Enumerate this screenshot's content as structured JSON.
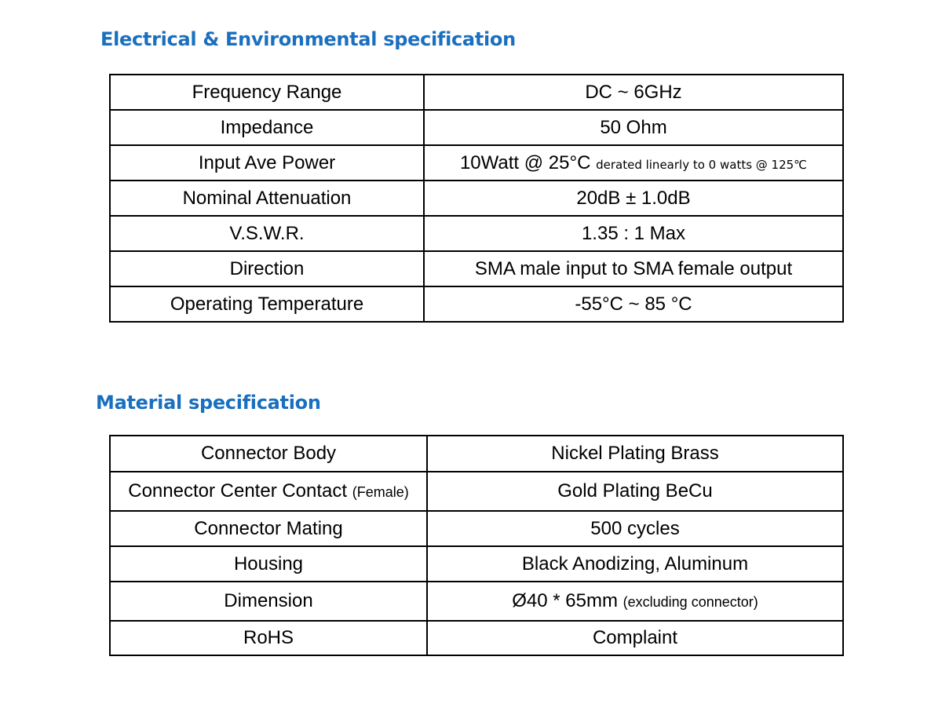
{
  "electrical": {
    "title": "Electrical & Environmental specification",
    "rows": [
      {
        "label": "Frequency Range",
        "value": "DC ~ 6GHz"
      },
      {
        "label": "Impedance",
        "value": "50 Ohm"
      },
      {
        "label": "Input Ave Power",
        "value": "10Watt @ 25°C",
        "note": "derated linearly to 0 watts @ 125℃"
      },
      {
        "label": "Nominal Attenuation",
        "value": "20dB ± 1.0dB"
      },
      {
        "label": "V.S.W.R.",
        "value": "1.35 : 1 Max"
      },
      {
        "label": "Direction",
        "value": "SMA male input to SMA female output"
      },
      {
        "label": "Operating Temperature",
        "value": "-55°C ~ 85 °C"
      }
    ]
  },
  "material": {
    "title": "Material specification",
    "rows": [
      {
        "label": "Connector Body",
        "value": "Nickel Plating Brass"
      },
      {
        "label": "Connector Center Contact",
        "label_note": "(Female)",
        "value": "Gold Plating BeCu"
      },
      {
        "label": "Connector Mating",
        "value": "500 cycles"
      },
      {
        "label": "Housing",
        "value": "Black Anodizing, Aluminum"
      },
      {
        "label": "Dimension",
        "value": "Ø40 * 65mm",
        "note": "(excluding connector)"
      },
      {
        "label": "RoHS",
        "value": "Complaint"
      }
    ]
  }
}
